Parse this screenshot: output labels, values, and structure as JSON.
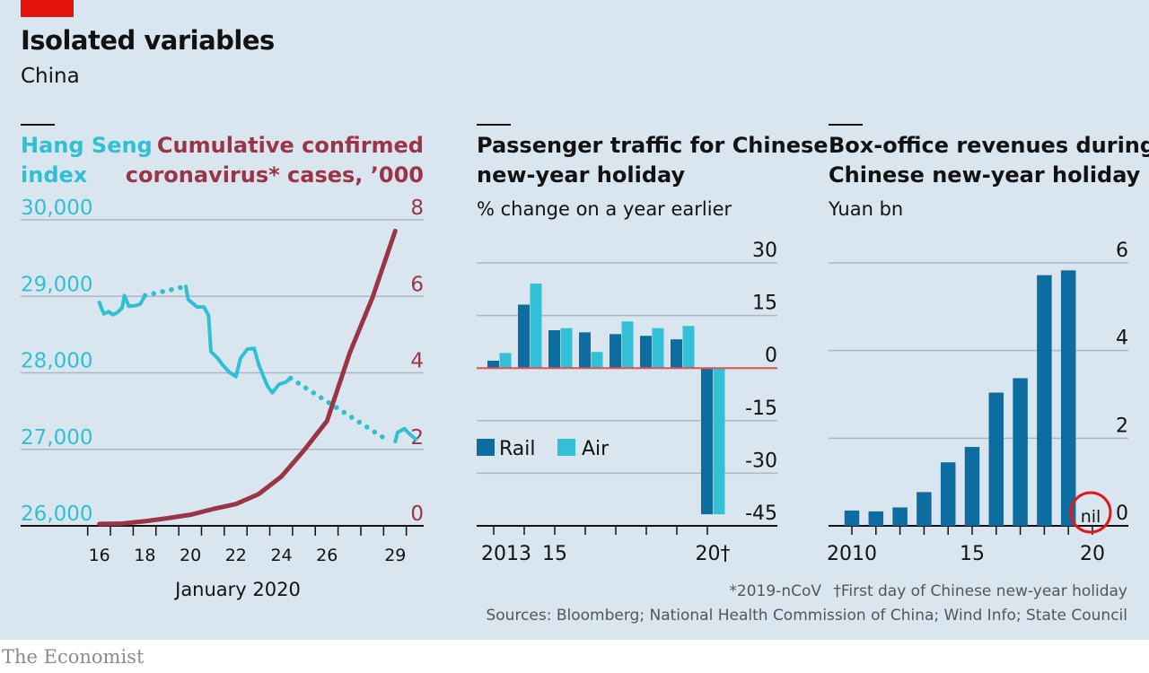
{
  "header": {
    "title": "Isolated variables",
    "subtitle": "China"
  },
  "footnotes": {
    "line1_a": "*2019-nCoV",
    "line1_b": "†First day of Chinese new-year holiday",
    "sources": "Sources: Bloomberg; National Health Commission of China; Wind Info; State Council"
  },
  "brand": "The Economist",
  "colors": {
    "background": "#d9e6ef",
    "hang_seng": "#2fc0d3",
    "cases": "#9b3446",
    "rail": "#0d6ca0",
    "air": "#33c0d6",
    "zero_line": "#e0524f",
    "accent_red": "#e3120b",
    "gridline": "#a9b8c2"
  },
  "chart_data": [
    {
      "type": "line",
      "id": "hang-seng-vs-cases",
      "title_left": [
        "Hang Seng",
        "index"
      ],
      "title_right": [
        "Cumulative confirmed",
        "coronavirus* cases, ’000"
      ],
      "xlabel": "January 2020",
      "x_ticks": [
        "16",
        "18",
        "20",
        "22",
        "24",
        "26",
        "29"
      ],
      "x_range_days": [
        15.5,
        29.5
      ],
      "y_left": {
        "label": "Hang Seng index",
        "range": [
          26000,
          30000
        ],
        "ticks": [
          "26,000",
          "27,000",
          "28,000",
          "29,000",
          "30,000"
        ],
        "tick_values": [
          26000,
          27000,
          28000,
          29000,
          30000
        ]
      },
      "y_right": {
        "label": "Cumulative confirmed cases, '000",
        "range": [
          0,
          8
        ],
        "ticks": [
          "0",
          "2",
          "4",
          "6",
          "8"
        ],
        "tick_values": [
          0,
          2,
          4,
          6,
          8
        ]
      },
      "series": [
        {
          "name": "Hang Seng index",
          "axis": "left",
          "segments": [
            {
              "style": "solid",
              "points": [
                [
                  16.0,
                  28920
                ],
                [
                  16.1,
                  28840
                ],
                [
                  16.2,
                  28770
                ],
                [
                  16.4,
                  28800
                ],
                [
                  16.6,
                  28760
                ],
                [
                  16.8,
                  28790
                ],
                [
                  17.0,
                  28850
                ],
                [
                  17.1,
                  29010
                ],
                [
                  17.3,
                  28870
                ],
                [
                  17.6,
                  28880
                ],
                [
                  17.8,
                  28900
                ],
                [
                  18.0,
                  29010
                ]
              ]
            },
            {
              "style": "dotted",
              "points": [
                [
                  18.0,
                  29010
                ],
                [
                  19.8,
                  29130
                ]
              ]
            },
            {
              "style": "solid",
              "points": [
                [
                  19.8,
                  29130
                ],
                [
                  19.9,
                  28960
                ],
                [
                  20.3,
                  28860
                ],
                [
                  20.6,
                  28860
                ],
                [
                  20.8,
                  28750
                ],
                [
                  20.9,
                  28280
                ],
                [
                  21.2,
                  28190
                ],
                [
                  21.4,
                  28110
                ],
                [
                  21.7,
                  28010
                ],
                [
                  22.0,
                  27950
                ],
                [
                  22.1,
                  28070
                ],
                [
                  22.2,
                  28190
                ],
                [
                  22.5,
                  28310
                ],
                [
                  22.8,
                  28320
                ],
                [
                  23.0,
                  28110
                ],
                [
                  23.2,
                  27960
                ],
                [
                  23.4,
                  27820
                ],
                [
                  23.6,
                  27740
                ],
                [
                  23.9,
                  27850
                ],
                [
                  24.2,
                  27880
                ],
                [
                  24.4,
                  27930
                ]
              ]
            },
            {
              "style": "dotted",
              "points": [
                [
                  24.4,
                  27930
                ],
                [
                  28.6,
                  27130
                ]
              ]
            },
            {
              "style": "solid",
              "points": [
                [
                  29.0,
                  27100
                ],
                [
                  29.1,
                  27220
                ],
                [
                  29.4,
                  27270
                ],
                [
                  29.6,
                  27210
                ],
                [
                  29.9,
                  27130
                ]
              ]
            }
          ]
        },
        {
          "name": "Cumulative confirmed coronavirus cases, '000",
          "axis": "right",
          "segments": [
            {
              "style": "solid",
              "points": [
                [
                  16,
                  0.05
                ],
                [
                  17,
                  0.06
                ],
                [
                  18,
                  0.12
                ],
                [
                  19,
                  0.2
                ],
                [
                  20,
                  0.29
                ],
                [
                  21,
                  0.44
                ],
                [
                  22,
                  0.57
                ],
                [
                  23,
                  0.83
                ],
                [
                  24,
                  1.29
                ],
                [
                  25,
                  1.98
                ],
                [
                  26,
                  2.74
                ],
                [
                  27,
                  4.52
                ],
                [
                  28,
                  5.97
                ],
                [
                  29,
                  7.71
                ]
              ]
            }
          ]
        }
      ]
    },
    {
      "type": "bar",
      "id": "passenger-traffic",
      "title": [
        "Passenger traffic for Chinese",
        "new-year holiday"
      ],
      "subtitle": "% change on a year earlier",
      "categories": [
        "2013",
        "2014",
        "2015",
        "2016",
        "2017",
        "2018",
        "2019",
        "2020"
      ],
      "x_tick_labels": [
        "2013",
        "15",
        "20†"
      ],
      "x_tick_label_years": [
        "2013",
        "2015",
        "2020"
      ],
      "ylim": [
        -45,
        30
      ],
      "y_ticks": [
        "30",
        "15",
        "0",
        "-15",
        "-30",
        "-45"
      ],
      "y_tick_values": [
        30,
        15,
        0,
        -15,
        -30,
        -45
      ],
      "legend": {
        "position": "middle-left",
        "entries": [
          "Rail",
          "Air"
        ]
      },
      "series": [
        {
          "name": "Rail",
          "values": [
            2.1,
            18.1,
            10.8,
            10.2,
            9.7,
            9.2,
            8.2,
            -41.7
          ]
        },
        {
          "name": "Air",
          "values": [
            4.3,
            24.1,
            11.4,
            4.6,
            13.3,
            11.4,
            12.0,
            -41.7
          ]
        }
      ]
    },
    {
      "type": "bar",
      "id": "box-office",
      "title": [
        "Box-office revenues during",
        "Chinese new-year holiday"
      ],
      "subtitle": "Yuan bn",
      "categories": [
        "2010",
        "2011",
        "2012",
        "2013",
        "2014",
        "2015",
        "2016",
        "2017",
        "2018",
        "2019",
        "2020"
      ],
      "x_tick_labels": [
        "2010",
        "15",
        "20"
      ],
      "x_tick_label_years": [
        "2010",
        "2015",
        "2020"
      ],
      "ylim": [
        0,
        6
      ],
      "y_ticks": [
        "6",
        "4",
        "2",
        "0"
      ],
      "y_tick_values": [
        6,
        4,
        2,
        0
      ],
      "series": [
        {
          "name": "Box-office revenue",
          "values": [
            0.35,
            0.33,
            0.42,
            0.77,
            1.45,
            1.8,
            3.04,
            3.37,
            5.72,
            5.83,
            0
          ]
        }
      ],
      "annotations": [
        {
          "category": "2020",
          "text": "nil",
          "highlight": "red-circle"
        }
      ]
    }
  ]
}
